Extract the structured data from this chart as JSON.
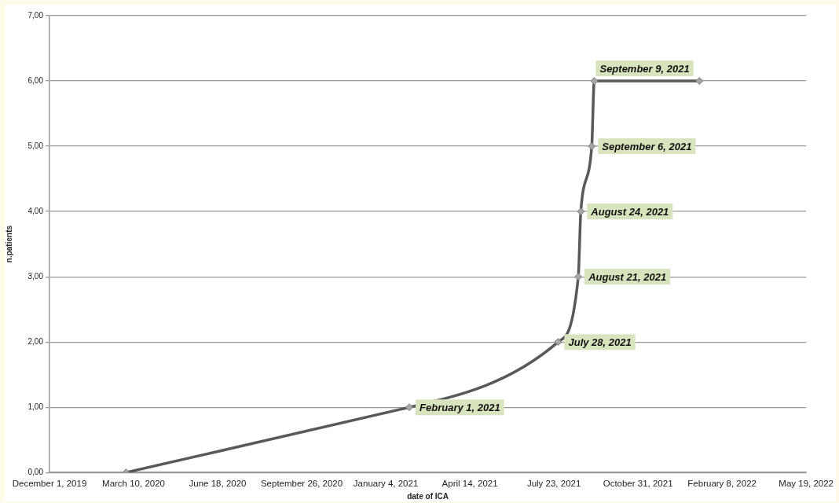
{
  "chart_data": {
    "type": "line",
    "xlabel": "date of ICA",
    "ylabel": "n.patients",
    "x": [
      "2020-03-01",
      "2021-02-01",
      "2021-07-28",
      "2021-08-21",
      "2021-08-24",
      "2021-09-06",
      "2021-09-09",
      "2022-01-12"
    ],
    "series": [
      {
        "color": "#595959",
        "values": [
          0,
          1,
          2,
          3,
          4,
          5,
          6,
          6
        ]
      }
    ],
    "xlim": [
      "2019-12-01",
      "2022-05-19"
    ],
    "xticks": [
      {
        "value": "2019-12-01",
        "label": "December 1, 2019"
      },
      {
        "value": "2020-03-10",
        "label": "March 10, 2020"
      },
      {
        "value": "2020-06-18",
        "label": "June 18, 2020"
      },
      {
        "value": "2020-09-26",
        "label": "September 26, 2020"
      },
      {
        "value": "2021-01-04",
        "label": "January 4, 2021"
      },
      {
        "value": "2021-04-14",
        "label": "April 14, 2021"
      },
      {
        "value": "2021-07-23",
        "label": "July 23, 2021"
      },
      {
        "value": "2021-10-31",
        "label": "October 31, 2021"
      },
      {
        "value": "2022-02-08",
        "label": "February 8, 2022"
      },
      {
        "value": "2022-05-19",
        "label": "May 19, 2022"
      }
    ],
    "ylim": [
      0,
      7
    ],
    "yticks": [
      {
        "value": 0,
        "label": "0,00"
      },
      {
        "value": 1,
        "label": "1,00"
      },
      {
        "value": 2,
        "label": "2,00"
      },
      {
        "value": 3,
        "label": "3,00"
      },
      {
        "value": 4,
        "label": "4,00"
      },
      {
        "value": 5,
        "label": "5,00"
      },
      {
        "value": 6,
        "label": "6,00"
      },
      {
        "value": 7,
        "label": "7,00"
      }
    ],
    "grid": "y",
    "legend": false,
    "marker": "diamond",
    "line_style": "solid",
    "annotations": [
      {
        "text": "February 1, 2021",
        "x": "2021-02-01",
        "y": 1
      },
      {
        "text": "July 28, 2021",
        "x": "2021-07-28",
        "y": 2
      },
      {
        "text": "August 21, 2021",
        "x": "2021-08-21",
        "y": 3
      },
      {
        "text": "August 24, 2021",
        "x": "2021-08-24",
        "y": 4
      },
      {
        "text": "September 6, 2021",
        "x": "2021-09-06",
        "y": 5
      },
      {
        "text": "September 9, 2021",
        "x": "2021-09-09",
        "y": 6
      }
    ]
  }
}
